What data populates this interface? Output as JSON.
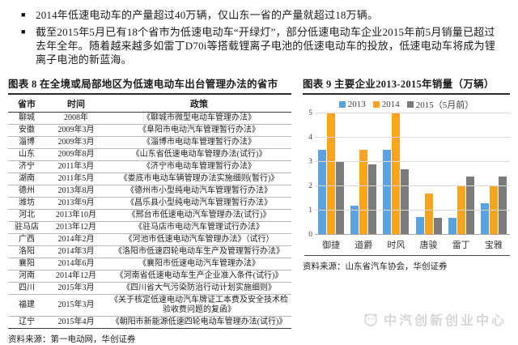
{
  "bullet_marker": "■",
  "bullets": [
    "2014年低速电动车的产量超过40万辆，仅山东一省的产量就超过18万辆。",
    "截至2015年5月已有18个省市为低速电动车“开绿灯”，部分低速电动车企业2015年前5月销量已超过去年全年。随着越来越多如雷丁D70i等搭载锂离子电池的低速电动车的投放，低速电动车将成为锂离子电池的新蓝海。"
  ],
  "table": {
    "title": "图表 8  在全境或局部地区为低速电动车出台管理办法的省市",
    "columns": [
      "省市",
      "时间",
      "政策"
    ],
    "rows": [
      {
        "province": "聊城",
        "time": "2008年",
        "policy": "《聊城市微型电动车管理办法》"
      },
      {
        "province": "安徽",
        "time": "2009年3月",
        "policy": "《阜阳市电动汽车管理暂行办法》"
      },
      {
        "province": "淄博",
        "time": "2009年3月",
        "policy": "《淄博市电动车管理暂行办法》"
      },
      {
        "province": "山东",
        "time": "2009年8月",
        "policy": "《山东省低速电动车管理办法(试行)》"
      },
      {
        "province": "济宁",
        "time": "2011年3月",
        "policy": "《济宁市电动车管理暂行办法》"
      },
      {
        "province": "湖南",
        "time": "2011年5月",
        "policy": "《娄底市电动车辆管理办法实施细则(暂行)》"
      },
      {
        "province": "德州",
        "time": "2013年8月",
        "policy": "《德州市小型纯电动汽车管理暂行办法》"
      },
      {
        "province": "潍坊",
        "time": "2013年9月",
        "policy": "《昌乐县小型纯电动汽车管理暂行办法》"
      },
      {
        "province": "河北",
        "time": "2013年10月",
        "policy": "《邢台市低速电动汽车管理办法(试行)》"
      },
      {
        "province": "驻马店",
        "time": "2013年12月",
        "policy": "《驻马店市电动汽车管理试行办法》"
      },
      {
        "province": "广西",
        "time": "2014年2月",
        "policy": "《河池市低速电动汽车管理办法》（试行）"
      },
      {
        "province": "洛阳",
        "time": "2014年3月",
        "policy": "《洛阳市低速四轮电动车生产及管理暂行办法》"
      },
      {
        "province": "襄阳",
        "time": "2014年6月",
        "policy": "《襄阳市低速电动汽车管理办法》"
      },
      {
        "province": "河南",
        "time": "2014年12月",
        "policy": "《河南省低速电动车生产企业准入条件(试行)》"
      },
      {
        "province": "四川",
        "time": "2015年3月",
        "policy": "《四川省大气污染防治行动计划实施细则》"
      },
      {
        "province": "福建",
        "time": "2015年3月",
        "policy": "《关于核定低速电动汽车牌证工本费及安全技术检验收费问题的复函》"
      },
      {
        "province": "辽宁",
        "time": "2015年4月",
        "policy": "《朝阳市新能源低速四轮电动车管理办法(试行)》"
      }
    ],
    "source": "资料来源：第一电动网，华创证券"
  },
  "chart": {
    "title": "图表 9  主要企业2013-2015年销量（万辆）",
    "source": "资料来源：山东省汽车协会，华创证券"
  },
  "chart_data": {
    "type": "bar",
    "title": "图表 9 主要企业2013-2015年销量（万辆）",
    "categories": [
      "御捷",
      "道爵",
      "时风",
      "唐骏",
      "雷丁",
      "宝雅"
    ],
    "series": [
      {
        "name": "2013",
        "color": "#5ba3e0",
        "values": [
          3.5,
          1.2,
          3.5,
          0.75,
          0.7,
          1.3
        ]
      },
      {
        "name": "2014",
        "color": "#fca421",
        "values": [
          5.0,
          3.5,
          5.0,
          1.7,
          2.0,
          2.0
        ]
      },
      {
        "name": "2015（5月前）",
        "color": "#7b7b7b",
        "values": [
          3.0,
          2.9,
          2.7,
          0.7,
          2.4,
          2.4
        ]
      }
    ],
    "xlabel": "",
    "ylabel": "",
    "ylim": [
      0,
      5
    ],
    "yticks": [
      0,
      1,
      2,
      3,
      4,
      5
    ],
    "grid": true,
    "legend_position": "top"
  },
  "watermark": {
    "text": "中汽创新创业中心"
  },
  "colors": {
    "series_2013": "#5ba3e0",
    "series_2014": "#fca421",
    "series_2015": "#7b7b7b",
    "rule_dark": "#3a3a3a",
    "gridline": "#d9d9d9",
    "watermark": "#d7d7d7"
  }
}
